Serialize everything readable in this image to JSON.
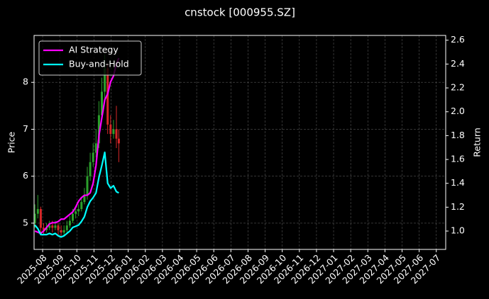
{
  "chart_data": {
    "type": "candlestick",
    "title": "cnstock [000955.SZ]",
    "ylabel": "Price",
    "y2label": "Return",
    "x": [
      -0.45,
      -0.28,
      -0.11,
      0.06,
      0.23,
      0.4,
      0.57,
      0.74,
      0.91,
      1.08,
      1.25,
      1.42,
      1.59,
      1.76,
      1.93,
      2.1,
      2.27,
      2.44,
      2.61,
      2.78,
      2.95,
      3.12,
      3.29,
      3.46,
      3.63,
      3.8,
      3.97,
      4.14,
      4.31,
      4.45
    ],
    "open": [
      5.0,
      5.2,
      5.3,
      4.9,
      4.85,
      4.9,
      4.95,
      4.9,
      4.95,
      4.85,
      4.8,
      4.85,
      4.95,
      5.05,
      5.2,
      5.25,
      5.3,
      5.45,
      5.6,
      6.0,
      6.3,
      6.5,
      6.7,
      7.3,
      7.8,
      8.3,
      7.1,
      6.9,
      7.0,
      6.8
    ],
    "high": [
      5.4,
      5.6,
      5.35,
      5.0,
      5.0,
      5.05,
      5.05,
      5.05,
      5.0,
      4.95,
      4.95,
      5.05,
      5.15,
      5.3,
      5.35,
      5.4,
      5.55,
      5.75,
      6.2,
      6.5,
      6.7,
      7.0,
      7.6,
      8.1,
      8.6,
      8.4,
      7.3,
      7.2,
      7.5,
      7.0
    ],
    "low": [
      4.9,
      5.1,
      4.8,
      4.75,
      4.8,
      4.85,
      4.8,
      4.85,
      4.75,
      4.7,
      4.72,
      4.8,
      4.9,
      5.0,
      5.1,
      5.15,
      5.25,
      5.4,
      5.5,
      5.9,
      6.2,
      6.4,
      6.6,
      7.2,
      7.6,
      6.9,
      6.7,
      6.8,
      6.6,
      6.3
    ],
    "close": [
      5.2,
      5.3,
      4.9,
      4.85,
      4.9,
      4.95,
      4.9,
      4.95,
      4.85,
      4.8,
      4.85,
      4.95,
      5.05,
      5.2,
      5.25,
      5.3,
      5.45,
      5.6,
      6.0,
      6.3,
      6.5,
      6.7,
      7.3,
      7.8,
      8.3,
      7.1,
      6.9,
      7.0,
      6.8,
      6.7
    ],
    "up_color": "#2ca02c",
    "down_color": "#d62728",
    "series": [
      {
        "name": "AI Strategy",
        "color": "#ff00ff",
        "axis": "y2",
        "values": [
          1.0,
          0.99,
          0.98,
          1.0,
          1.03,
          1.06,
          1.07,
          1.07,
          1.08,
          1.1,
          1.1,
          1.12,
          1.14,
          1.16,
          1.2,
          1.25,
          1.28,
          1.3,
          1.3,
          1.32,
          1.4,
          1.55,
          1.8,
          1.95,
          2.1,
          2.15,
          2.25,
          2.3,
          2.4,
          2.45
        ]
      },
      {
        "name": "Buy-and-Hold",
        "color": "#00ffff",
        "axis": "y2",
        "values": [
          1.05,
          1.02,
          0.97,
          0.97,
          0.97,
          0.98,
          0.97,
          0.98,
          0.96,
          0.95,
          0.96,
          0.98,
          1.0,
          1.03,
          1.04,
          1.05,
          1.08,
          1.12,
          1.2,
          1.25,
          1.28,
          1.32,
          1.45,
          1.55,
          1.66,
          1.4,
          1.36,
          1.38,
          1.33,
          1.32
        ]
      }
    ],
    "xlim": [
      -0.5,
      23.55
    ],
    "ylim": [
      4.44,
      9.0
    ],
    "y2lim": [
      0.846,
      2.64
    ],
    "xticks": [
      {
        "value": 0,
        "label": "2025-08"
      },
      {
        "value": 1,
        "label": "2025-09"
      },
      {
        "value": 2,
        "label": "2025-10"
      },
      {
        "value": 3,
        "label": "2025-11"
      },
      {
        "value": 4,
        "label": "2025-12"
      },
      {
        "value": 5,
        "label": "2026-01"
      },
      {
        "value": 6,
        "label": "2026-02"
      },
      {
        "value": 7,
        "label": "2026-03"
      },
      {
        "value": 8,
        "label": "2026-04"
      },
      {
        "value": 9,
        "label": "2026-05"
      },
      {
        "value": 10,
        "label": "2026-06"
      },
      {
        "value": 11,
        "label": "2026-07"
      },
      {
        "value": 12,
        "label": "2026-08"
      },
      {
        "value": 13,
        "label": "2026-09"
      },
      {
        "value": 14,
        "label": "2026-10"
      },
      {
        "value": 15,
        "label": "2026-11"
      },
      {
        "value": 16,
        "label": "2026-12"
      },
      {
        "value": 17,
        "label": "2027-01"
      },
      {
        "value": 18,
        "label": "2027-02"
      },
      {
        "value": 19,
        "label": "2027-03"
      },
      {
        "value": 20,
        "label": "2027-04"
      },
      {
        "value": 21,
        "label": "2027-05"
      },
      {
        "value": 22,
        "label": "2027-06"
      },
      {
        "value": 23,
        "label": "2027-07"
      }
    ],
    "yticks": [
      5,
      6,
      7,
      8
    ],
    "y2ticks": [
      {
        "value": 1,
        "label": "1.0"
      },
      1.2,
      1.4,
      1.6,
      1.8,
      {
        "value": 2,
        "label": "2.0"
      },
      2.2,
      2.4,
      2.6
    ],
    "grid": true,
    "legend": "upper left"
  }
}
